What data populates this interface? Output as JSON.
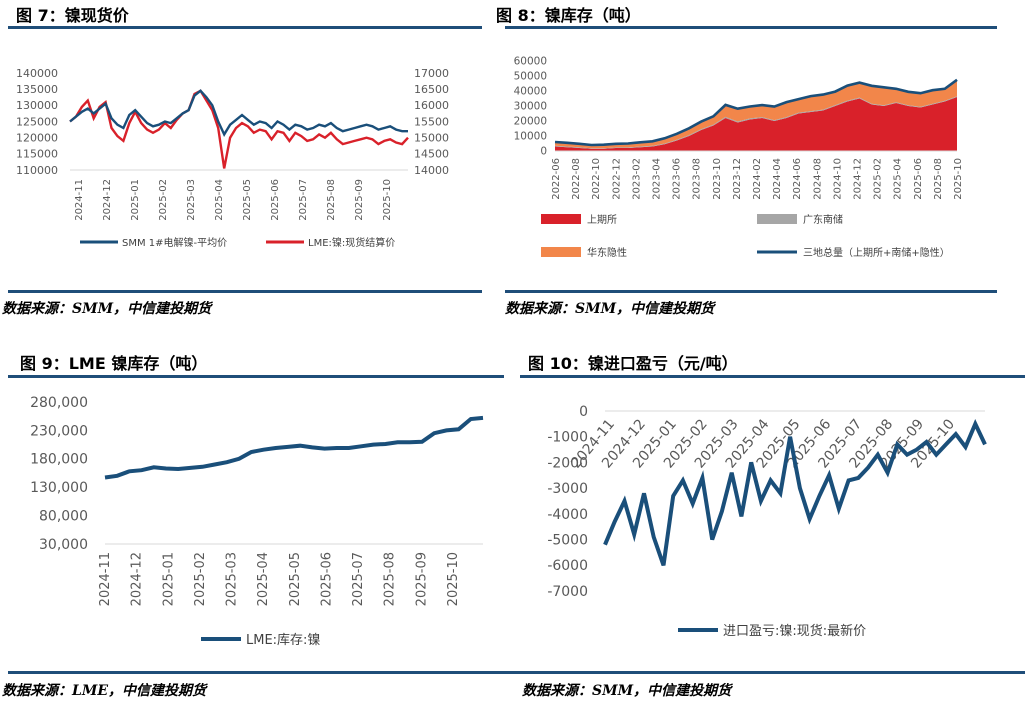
{
  "panels": [
    {
      "title": "图 7：镍现货价",
      "source": "数据来源：SMM，中信建投期货"
    },
    {
      "title": "图 8：镍库存（吨）",
      "source": "数据来源：SMM，中信建投期货"
    },
    {
      "title": "图 9：LME 镍库存（吨）",
      "source": "数据来源：LME，中信建投期货"
    },
    {
      "title": "图 10：镍进口盈亏（元/吨）",
      "source": "数据来源：SMM，中信建投期货"
    }
  ],
  "colors": {
    "navy": "#1a4f7a",
    "red": "#d9212a",
    "orange": "#f2864a",
    "gray": "#a6a6a6",
    "rule": "#1f4e79"
  },
  "chart_data": [
    {
      "type": "line",
      "title": "",
      "x_ticks": [
        "2024-11",
        "2024-12",
        "2025-01",
        "2025-02",
        "2025-03",
        "2025-04",
        "2025-05",
        "2025-06",
        "2025-07",
        "2025-08",
        "2025-09",
        "2025-10"
      ],
      "y_ticks": [
        "140000",
        "135000",
        "130000",
        "125000",
        "120000",
        "115000",
        "110000"
      ],
      "y2_ticks": [
        "17000",
        "16500",
        "16000",
        "15500",
        "15000",
        "14500",
        "14000"
      ],
      "ylim": [
        110000,
        140000
      ],
      "y2lim": [
        14000,
        17000
      ],
      "series": [
        {
          "name": "SMM 1#电解镍-平均价",
          "axis": "left",
          "color": "#1a4f7a",
          "values": [
            125000,
            126500,
            128000,
            129000,
            127500,
            129000,
            130500,
            126000,
            124000,
            123000,
            127000,
            128500,
            126500,
            124500,
            123500,
            124000,
            125000,
            124500,
            126000,
            127500,
            128500,
            133000,
            134500,
            132500,
            130000,
            125000,
            121000,
            124000,
            125500,
            127000,
            125500,
            124000,
            125000,
            124500,
            123000,
            125000,
            124000,
            122500,
            124000,
            123500,
            122500,
            123000,
            124000,
            123500,
            124500,
            123000,
            122000,
            122500,
            123000,
            123500,
            124000,
            123500,
            122500,
            123000,
            123500,
            122500,
            122000,
            122000
          ]
        },
        {
          "name": "LME:镍:现货结算价",
          "axis": "right",
          "color": "#d9212a",
          "values": [
            15500,
            15650,
            15950,
            16150,
            15600,
            15950,
            16100,
            15300,
            15050,
            14900,
            15450,
            15800,
            15450,
            15250,
            15150,
            15250,
            15450,
            15300,
            15550,
            15750,
            15850,
            16350,
            16450,
            16150,
            15850,
            15300,
            14050,
            15000,
            15300,
            15450,
            15350,
            15150,
            15250,
            15200,
            14950,
            15200,
            15150,
            14900,
            15150,
            15050,
            14900,
            14950,
            15100,
            15000,
            15150,
            14950,
            14800,
            14850,
            14900,
            14950,
            15000,
            14950,
            14800,
            14900,
            14950,
            14850,
            14800,
            15000
          ]
        }
      ]
    },
    {
      "type": "area",
      "title": "",
      "x_ticks": [
        "2022-06",
        "2022-08",
        "2022-10",
        "2022-12",
        "2023-02",
        "2023-04",
        "2023-06",
        "2023-08",
        "2023-10",
        "2023-12",
        "2024-02",
        "2024-04",
        "2024-06",
        "2024-08",
        "2024-10",
        "2024-12",
        "2025-02",
        "2025-04",
        "2025-06",
        "2025-08",
        "2025-10"
      ],
      "y_ticks": [
        "60000",
        "50000",
        "40000",
        "30000",
        "20000",
        "10000",
        "0"
      ],
      "ylim": [
        0,
        60000
      ],
      "legend": [
        {
          "name": "上期所",
          "color": "#d9212a",
          "shape": "rect"
        },
        {
          "name": "广东南储",
          "color": "#a6a6a6",
          "shape": "rect"
        },
        {
          "name": "华东隐性",
          "color": "#f2864a",
          "shape": "rect"
        },
        {
          "name": "三地总量（上期所+南储+隐性）",
          "color": "#1a4f7a",
          "shape": "line"
        }
      ],
      "series": [
        {
          "name": "上期所",
          "values": [
            3000,
            2500,
            2000,
            1500,
            1500,
            2000,
            2000,
            2500,
            3000,
            4500,
            7000,
            10000,
            14000,
            17000,
            22000,
            19000,
            21000,
            22000,
            20000,
            22000,
            25000,
            26000,
            27000,
            30000,
            33000,
            35000,
            31000,
            30000,
            32000,
            30000,
            29000,
            31000,
            33000,
            36000
          ]
        },
        {
          "name": "广东南储",
          "values": [
            500,
            500,
            500,
            400,
            400,
            400,
            400,
            500,
            500,
            500,
            500,
            600,
            600,
            600,
            700,
            700,
            700,
            600,
            600,
            600,
            600,
            600,
            600,
            600,
            600,
            600,
            500,
            500,
            500,
            500,
            500,
            500,
            500,
            500
          ]
        },
        {
          "name": "华东隐性",
          "values": [
            2500,
            2500,
            2300,
            2100,
            2300,
            2400,
            2600,
            2800,
            3000,
            3500,
            4000,
            4500,
            5000,
            5500,
            8000,
            8500,
            8000,
            8000,
            9000,
            10000,
            9000,
            10000,
            10000,
            9000,
            10000,
            10000,
            12000,
            12000,
            9000,
            9000,
            9000,
            9000,
            8000,
            11000
          ]
        },
        {
          "name": "三地总量（上期所+南储+隐性）",
          "values": [
            6000,
            5500,
            4800,
            4000,
            4200,
            4800,
            5000,
            5800,
            6500,
            8500,
            11500,
            15100,
            19600,
            23100,
            30700,
            28200,
            29700,
            30600,
            29600,
            32600,
            34600,
            36600,
            37600,
            39600,
            43600,
            45600,
            43500,
            42500,
            41500,
            39500,
            38500,
            40500,
            41500,
            47500
          ]
        }
      ]
    },
    {
      "type": "line",
      "title": "",
      "x_ticks": [
        "2024-11",
        "2024-12",
        "2025-01",
        "2025-02",
        "2025-03",
        "2025-04",
        "2025-05",
        "2025-06",
        "2025-07",
        "2025-08",
        "2025-09",
        "2025-10"
      ],
      "y_ticks": [
        "280,000",
        "230,000",
        "180,000",
        "130,000",
        "80,000",
        "30,000"
      ],
      "ylim": [
        30000,
        280000
      ],
      "series": [
        {
          "name": "LME:库存:镍",
          "color": "#1a4f7a",
          "values": [
            147000,
            150000,
            158000,
            160000,
            165000,
            163000,
            162000,
            164000,
            166000,
            170000,
            174000,
            180000,
            192000,
            196000,
            199000,
            201000,
            203000,
            200000,
            198000,
            199000,
            199000,
            202000,
            205000,
            206000,
            209000,
            209000,
            210000,
            225000,
            230000,
            232000,
            250000,
            252000
          ]
        }
      ]
    },
    {
      "type": "line",
      "title": "",
      "x_ticks": [
        "2024-11",
        "2024-12",
        "2025-01",
        "2025-02",
        "2025-03",
        "2025-04",
        "2025-05",
        "2025-06",
        "2025-07",
        "2025-08",
        "2025-09",
        "2025-10"
      ],
      "y_ticks": [
        "0",
        "-1000",
        "-2000",
        "-3000",
        "-4000",
        "-5000",
        "-6000",
        "-7000"
      ],
      "ylim": [
        -7000,
        0
      ],
      "series": [
        {
          "name": "进口盈亏:镍:现货:最新价",
          "color": "#1a4f7a",
          "values": [
            -5200,
            -4300,
            -3500,
            -4800,
            -3200,
            -4900,
            -6000,
            -3300,
            -2700,
            -3600,
            -2600,
            -5000,
            -3900,
            -2400,
            -4100,
            -2000,
            -3500,
            -2700,
            -3200,
            -1000,
            -3000,
            -4200,
            -3300,
            -2500,
            -3800,
            -2700,
            -2600,
            -2200,
            -1700,
            -2400,
            -1300,
            -1700,
            -1500,
            -1200,
            -1700,
            -1300,
            -900,
            -1400,
            -500,
            -1300
          ]
        }
      ]
    }
  ]
}
